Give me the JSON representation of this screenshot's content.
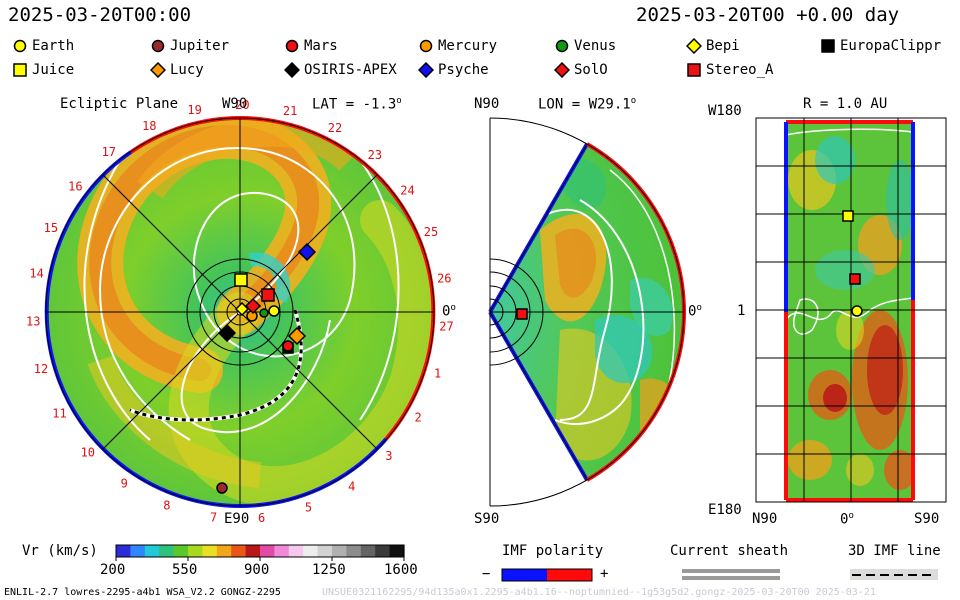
{
  "header": {
    "date_left": "2025-03-20T00:00",
    "date_right": "2025-03-20T00 +0.00 day"
  },
  "legend": {
    "items": [
      {
        "name": "Earth",
        "marker": "circle",
        "color": "#ffff00"
      },
      {
        "name": "Jupiter",
        "marker": "circle",
        "color": "#9b2a2a"
      },
      {
        "name": "Mars",
        "marker": "circle",
        "color": "#ee1111"
      },
      {
        "name": "Mercury",
        "marker": "circle",
        "color": "#ff9900"
      },
      {
        "name": "Venus",
        "marker": "circle",
        "color": "#119911"
      },
      {
        "name": "Bepi",
        "marker": "diamond",
        "color": "#ffff00"
      },
      {
        "name": "EuropaClippr",
        "marker": "square",
        "color": "#000000"
      },
      {
        "name": "Juice",
        "marker": "square",
        "color": "#ffff00"
      },
      {
        "name": "Lucy",
        "marker": "diamond",
        "color": "#ff9900"
      },
      {
        "name": "OSIRIS-APEX",
        "marker": "diamond",
        "color": "#000000"
      },
      {
        "name": "Psyche",
        "marker": "diamond",
        "color": "#1111ee"
      },
      {
        "name": "SolO",
        "marker": "diamond",
        "color": "#ee1111"
      },
      {
        "name": "Stereo_A",
        "marker": "square",
        "color": "#ee1111"
      }
    ]
  },
  "panels": {
    "ecliptic": {
      "title": "Ecliptic Plane",
      "top_label": "W90",
      "lat_label": "LAT = -1.3",
      "right_label": "0",
      "bottom_label": "E90",
      "carrington_labels": [
        "18",
        "19",
        "20",
        "21",
        "22",
        "23",
        "24",
        "25",
        "26",
        "27",
        "1",
        "2",
        "3",
        "4",
        "5",
        "6",
        "7",
        "8",
        "9",
        "10",
        "11",
        "12",
        "13",
        "14",
        "15",
        "16",
        "17"
      ]
    },
    "meridional": {
      "top_label": "N90",
      "lon_label": "LON = W29.1",
      "right_label": "0",
      "bottom_label": "S90"
    },
    "radial": {
      "r_label": "R = 1.0 AU",
      "top_left": "W180",
      "mid_left": "1",
      "bottom_left": "E180",
      "x_left": "N90",
      "x_mid": "0",
      "x_right": "S90"
    }
  },
  "colorbar": {
    "label": "Vr (km/s)",
    "ticks": [
      "200",
      "550",
      "900",
      "1250",
      "1600"
    ],
    "colors": [
      "#2b2bd8",
      "#2f86ff",
      "#22c9d8",
      "#2ec27a",
      "#5ac82a",
      "#a8d820",
      "#e8e022",
      "#f2a61c",
      "#e8561a",
      "#b81818",
      "#e24aa8",
      "#f08ad8",
      "#f6c8ee",
      "#eeeeee",
      "#d2d2d2",
      "#b0b0b0",
      "#8c8c8c",
      "#646464",
      "#3a3a3a",
      "#101010"
    ]
  },
  "imf": {
    "label": "IMF polarity",
    "minus": "−",
    "plus": "+",
    "colors": [
      "#0a12ff",
      "#ff0a0a"
    ]
  },
  "sheath": {
    "label": "Current sheath"
  },
  "imfline": {
    "label": "3D IMF line"
  },
  "footer": {
    "left": "ENLIL-2.7 lowres-2295-a4b1 WSA_V2.2 GONGZ-2295",
    "right": "UNSUE0321162295/94d135a0x1.2295-a4b1.16--noptumnied--1g53g5d2.gongz-2025-03-20T00   2025-03-21"
  },
  "chart_data": [
    {
      "type": "heatmap",
      "title": "Ecliptic Plane",
      "quantity": "Vr (km/s)",
      "colorbar_range": [
        200,
        1600
      ],
      "colorbar_ticks": [
        200,
        550,
        900,
        1250,
        1600
      ],
      "polarity": [
        "-",
        "+"
      ]
    },
    {
      "type": "heatmap",
      "title": "LON = W29.1",
      "quantity": "Vr (km/s)"
    },
    {
      "type": "heatmap",
      "title": "R = 1.0 AU",
      "quantity": "Vr (km/s)"
    }
  ]
}
